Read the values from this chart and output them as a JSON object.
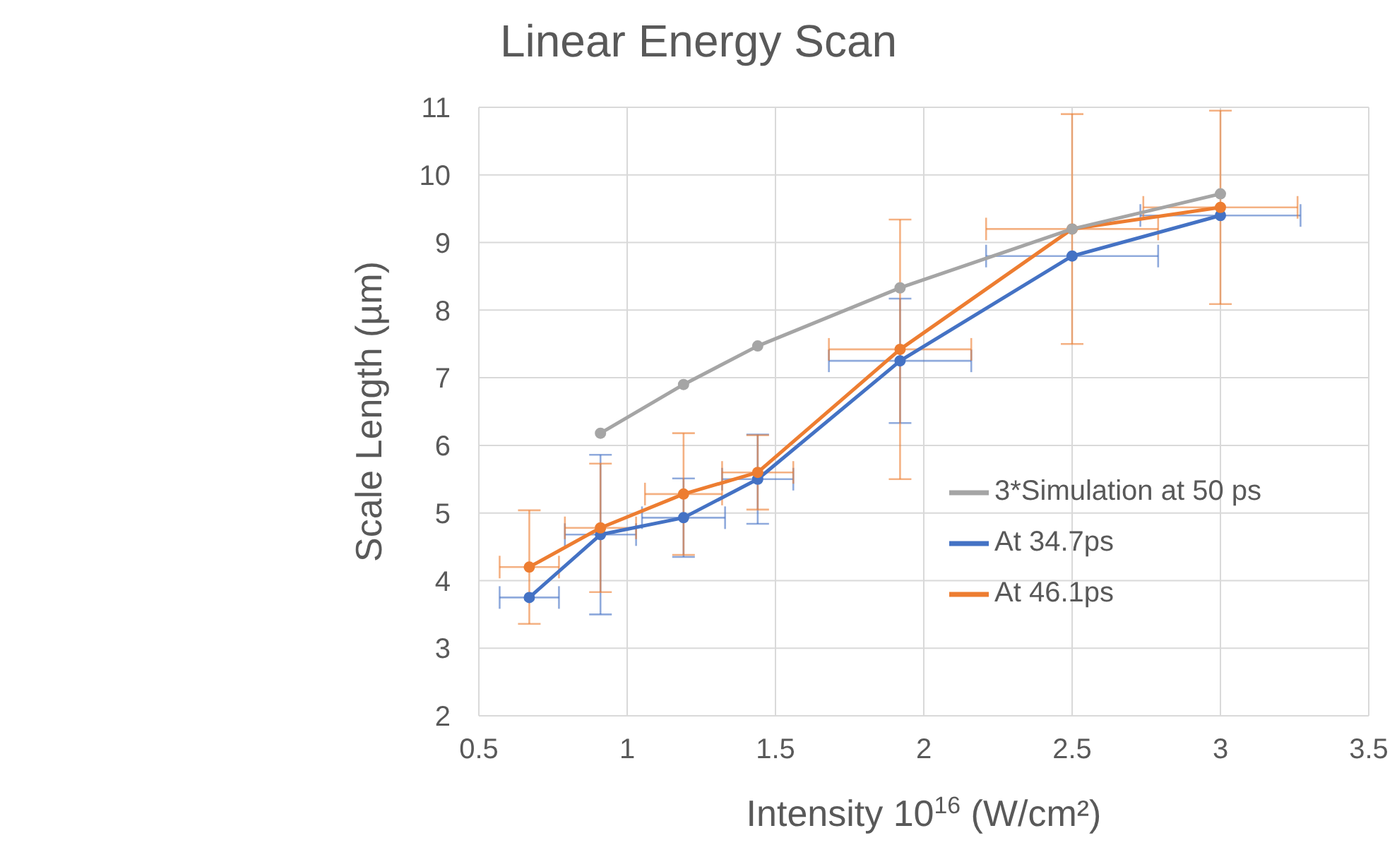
{
  "chart_data": {
    "type": "line",
    "title": "Linear Energy Scan",
    "xlabel": "Intensity 10$^{16}$ (W/cm²)",
    "ylabel": "Scale Length (µm)",
    "x": [
      0.67,
      0.91,
      1.19,
      1.44,
      1.92,
      2.5,
      3.0
    ],
    "series": [
      {
        "name": "At 34.7ps",
        "color": "#4472c4",
        "values": [
          3.75,
          4.68,
          4.93,
          5.5,
          7.25,
          8.8,
          9.4
        ],
        "errors": [
          null,
          1.18,
          0.58,
          0.66,
          0.92,
          null,
          null
        ],
        "xerrors": [
          0.1,
          0.12,
          0.14,
          0.12,
          0.24,
          0.29,
          0.27
        ]
      },
      {
        "name": "At 46.1ps",
        "color": "#ed7d31",
        "values": [
          4.2,
          4.78,
          5.28,
          5.6,
          7.42,
          9.2,
          9.52
        ],
        "errors": [
          0.84,
          0.95,
          0.9,
          0.55,
          1.92,
          1.7,
          1.43
        ],
        "xerrors": [
          0.1,
          0.12,
          0.13,
          0.12,
          0.24,
          0.29,
          0.26
        ]
      },
      {
        "name": "3*Simulation at 50 ps",
        "color": "#a5a5a5",
        "x": [
          0.91,
          1.19,
          1.44,
          1.92,
          2.5,
          3.0
        ],
        "values": [
          6.18,
          6.9,
          7.47,
          8.33,
          9.2,
          9.72
        ]
      }
    ],
    "xlim": [
      0.5,
      3.5
    ],
    "xticks": [
      0.5,
      1,
      1.5,
      2,
      2.5,
      3,
      3.5
    ],
    "ylim": [
      2,
      11
    ],
    "yticks": [
      2,
      3,
      4,
      5,
      6,
      7,
      8,
      9,
      10,
      11
    ],
    "grid": true,
    "legend": "right",
    "marker": "circle",
    "line_style": "solid"
  }
}
